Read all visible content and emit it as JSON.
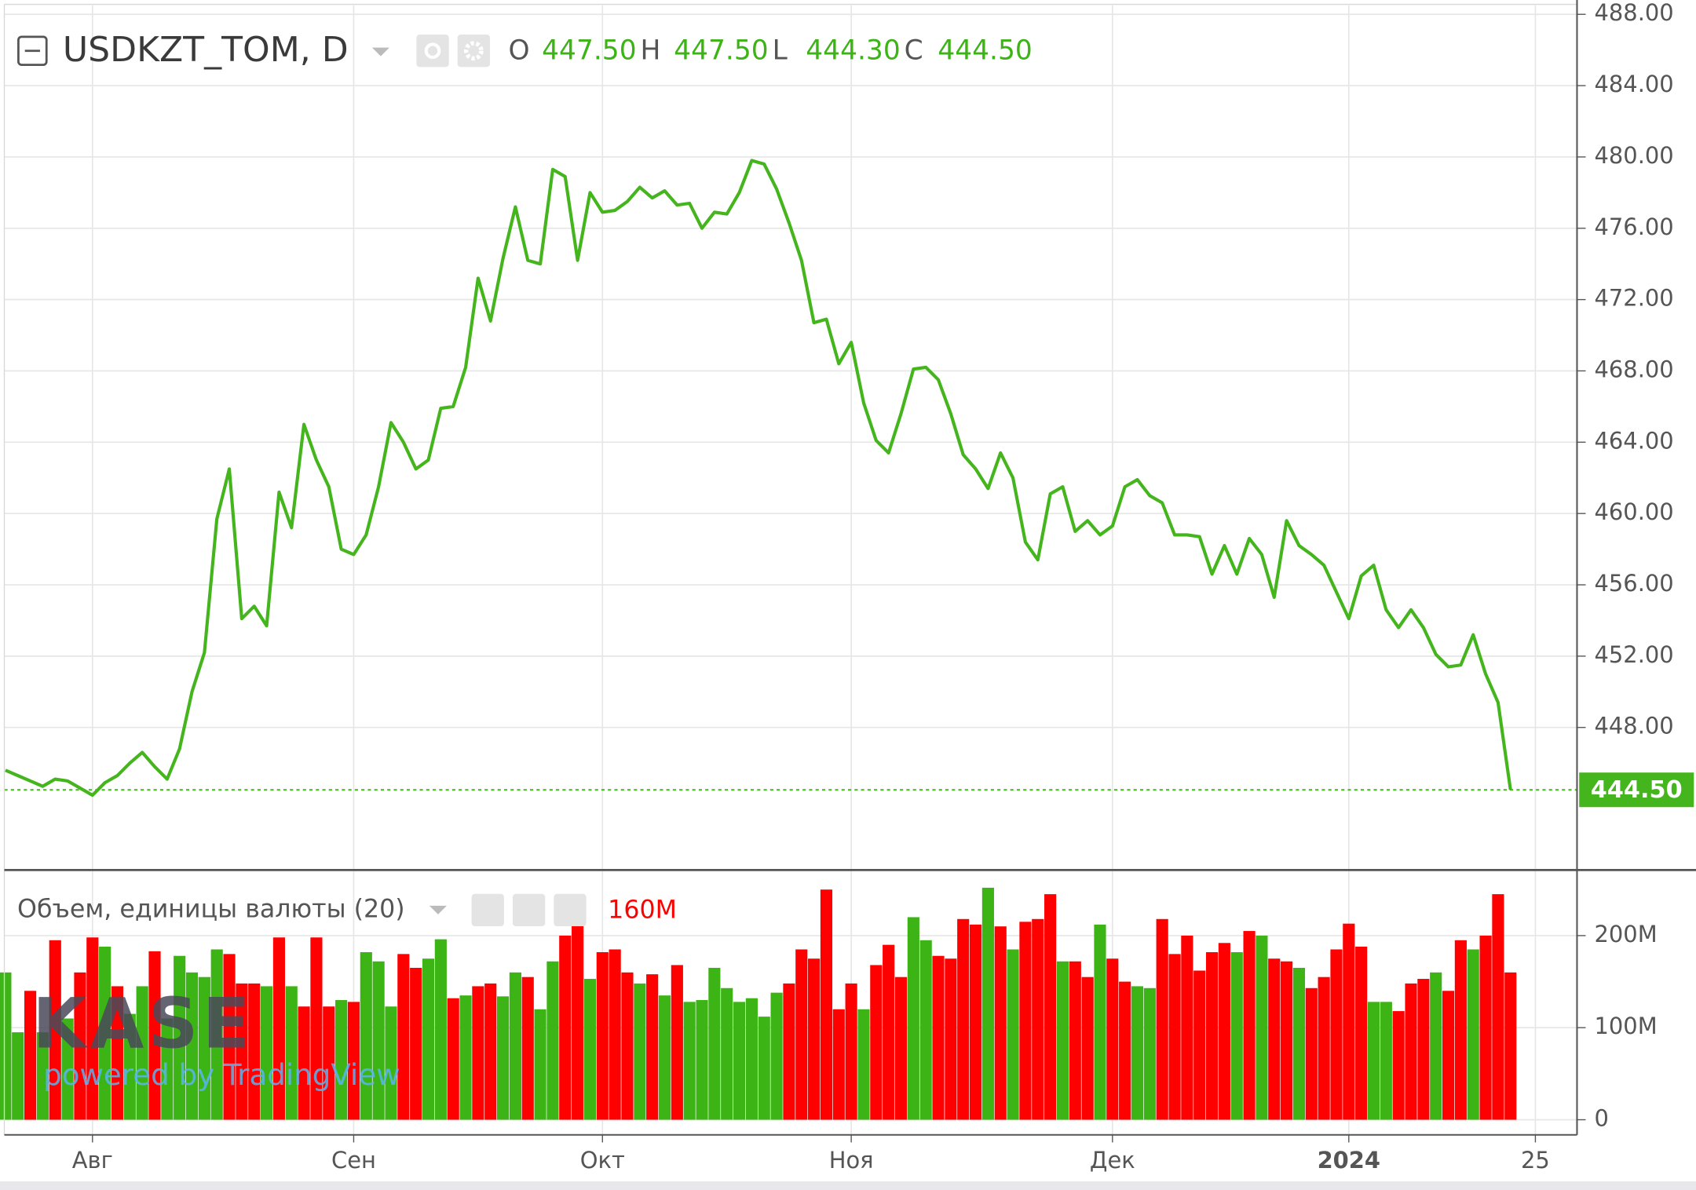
{
  "chart_data": [
    {
      "type": "line",
      "title": "USDKZT_TOM, D",
      "ohlc": [
        {
          "key": "O",
          "value": 447.5,
          "label": "447.50"
        },
        {
          "key": "H",
          "value": 447.5,
          "label": "447.50"
        },
        {
          "key": "L",
          "value": 444.3,
          "label": "444.30"
        },
        {
          "key": "C",
          "value": 444.5,
          "label": "444.50"
        }
      ],
      "categories": [
        null,
        null,
        null,
        null,
        null,
        null,
        null,
        "Авг",
        null,
        null,
        null,
        null,
        null,
        null,
        null,
        null,
        null,
        null,
        null,
        null,
        null,
        null,
        null,
        null,
        null,
        null,
        null,
        null,
        "Сен",
        null,
        null,
        null,
        null,
        null,
        null,
        null,
        null,
        null,
        null,
        null,
        null,
        null,
        null,
        null,
        null,
        null,
        null,
        null,
        "Окт",
        null,
        null,
        null,
        null,
        null,
        null,
        null,
        null,
        null,
        null,
        null,
        null,
        null,
        null,
        null,
        null,
        null,
        null,
        null,
        "Ноя",
        null,
        null,
        null,
        null,
        null,
        null,
        null,
        null,
        null,
        null,
        null,
        null,
        null,
        null,
        null,
        null,
        null,
        null,
        null,
        null,
        "Дек",
        null,
        null,
        null,
        null,
        null,
        null,
        null,
        null,
        null,
        null,
        null,
        null,
        null,
        null,
        null,
        null,
        null,
        null,
        "2024",
        null,
        null,
        null,
        null,
        null,
        null,
        null,
        null,
        null,
        null,
        null,
        null,
        null,
        null,
        "25"
      ],
      "values": [
        445.6,
        445.3,
        445.0,
        444.7,
        445.1,
        445.0,
        444.6,
        444.2,
        444.9,
        445.3,
        446.0,
        446.6,
        445.8,
        445.1,
        446.8,
        450.0,
        452.2,
        459.7,
        462.5,
        454.1,
        454.8,
        453.7,
        461.2,
        459.2,
        465.0,
        463.0,
        461.5,
        458.0,
        457.7,
        458.8,
        461.5,
        465.1,
        464.0,
        462.5,
        463.0,
        465.9,
        466.0,
        468.2,
        473.2,
        470.8,
        474.3,
        477.2,
        474.2,
        474.0,
        479.3,
        478.9,
        474.2,
        478.0,
        476.9,
        477.0,
        477.5,
        478.3,
        477.7,
        478.1,
        477.3,
        477.4,
        476.0,
        476.9,
        476.8,
        478.0,
        479.8,
        479.6,
        478.2,
        476.3,
        474.2,
        470.7,
        470.9,
        468.4,
        469.6,
        466.2,
        464.1,
        463.4,
        465.6,
        468.1,
        468.2,
        467.5,
        465.6,
        463.3,
        462.5,
        461.4,
        463.4,
        462.0,
        458.4,
        457.4,
        461.1,
        461.5,
        459.0,
        459.6,
        458.8,
        459.3,
        461.5,
        461.9,
        461.0,
        460.6,
        458.8,
        458.8,
        458.7,
        456.6,
        458.2,
        456.6,
        458.6,
        457.7,
        455.3,
        459.6,
        458.2,
        457.7,
        457.1,
        455.6,
        454.1,
        456.5,
        457.1,
        454.6,
        453.6,
        454.6,
        453.6,
        452.1,
        451.4,
        451.5,
        453.2,
        451.0,
        449.4,
        444.5,
        null,
        null
      ],
      "color": "#44b51d",
      "ylim": [
        440,
        488.5
      ],
      "yticks": [
        {
          "value": 448,
          "label": "448.00"
        },
        {
          "value": 452,
          "label": "452.00"
        },
        {
          "value": 456,
          "label": "456.00"
        },
        {
          "value": 460,
          "label": "460.00"
        },
        {
          "value": 464,
          "label": "464.00"
        },
        {
          "value": 468,
          "label": "468.00"
        },
        {
          "value": 472,
          "label": "472.00"
        },
        {
          "value": 476,
          "label": "476.00"
        },
        {
          "value": 480,
          "label": "480.00"
        },
        {
          "value": 484,
          "label": "484.00"
        },
        {
          "value": 488,
          "label": "488.00"
        }
      ],
      "grid": true,
      "last_value_line": true
    },
    {
      "type": "bar",
      "title": "Объем, единицы валюты (20)",
      "values": [
        160000000,
        95000000,
        140000000,
        95000000,
        195000000,
        110000000,
        160000000,
        198000000,
        188000000,
        145000000,
        115000000,
        145000000,
        183000000,
        110000000,
        178000000,
        160000000,
        155000000,
        185000000,
        180000000,
        148000000,
        148000000,
        145000000,
        198000000,
        145000000,
        123000000,
        198000000,
        123000000,
        130000000,
        128000000,
        182000000,
        172000000,
        123000000,
        180000000,
        165000000,
        175000000,
        196000000,
        132000000,
        135000000,
        145000000,
        148000000,
        134000000,
        160000000,
        155000000,
        120000000,
        172000000,
        200000000,
        220000000,
        153000000,
        182000000,
        185000000,
        160000000,
        148000000,
        158000000,
        135000000,
        168000000,
        128000000,
        130000000,
        165000000,
        143000000,
        128000000,
        132000000,
        112000000,
        138000000,
        148000000,
        185000000,
        175000000,
        250000000,
        120000000,
        148000000,
        120000000,
        168000000,
        190000000,
        155000000,
        220000000,
        195000000,
        178000000,
        175000000,
        218000000,
        212000000,
        252000000,
        210000000,
        185000000,
        215000000,
        218000000,
        245000000,
        172000000,
        172000000,
        155000000,
        212000000,
        175000000,
        150000000,
        145000000,
        143000000,
        218000000,
        180000000,
        200000000,
        162000000,
        182000000,
        192000000,
        182000000,
        205000000,
        200000000,
        175000000,
        172000000,
        165000000,
        143000000,
        155000000,
        185000000,
        213000000,
        188000000,
        128000000,
        128000000,
        118000000,
        148000000,
        153000000,
        160000000,
        140000000,
        195000000,
        185000000,
        200000000,
        245000000,
        160000000,
        null,
        null
      ],
      "value_labels": [
        null,
        null,
        null,
        null,
        null,
        null,
        null,
        null,
        null,
        null,
        null,
        null,
        null,
        null,
        null,
        null,
        null,
        null,
        null,
        null,
        null,
        null,
        null,
        null,
        null,
        null,
        null,
        null,
        null,
        null,
        null,
        null,
        null,
        null,
        null,
        null,
        null,
        null,
        null,
        null,
        null,
        null,
        null,
        null,
        null,
        null,
        null,
        null,
        null,
        null,
        null,
        null,
        null,
        null,
        null,
        null,
        null,
        null,
        null,
        null,
        null,
        null,
        null,
        null,
        null,
        null,
        null,
        null,
        null,
        null,
        null,
        null,
        null,
        null,
        null,
        null,
        null,
        null,
        null,
        null,
        null,
        null,
        null,
        null,
        null,
        null,
        null,
        null,
        null,
        null,
        null,
        null,
        null,
        null,
        null,
        null,
        null,
        null,
        null,
        null,
        null,
        null,
        null,
        null,
        null,
        null,
        null,
        null,
        null,
        null,
        null,
        null,
        null,
        null,
        null,
        null,
        null,
        null,
        null,
        null,
        null,
        "160M",
        null,
        null
      ],
      "colors": [
        "#3cb416",
        "#3cb416",
        "#ff0000",
        "#3cb416",
        "#ff0000",
        "#3cb416",
        "#ff0000",
        "#ff0000",
        "#3cb416",
        "#ff0000",
        "#3cb416",
        "#3cb416",
        "#ff0000",
        "#3cb416",
        "#3cb416",
        "#3cb416",
        "#3cb416",
        "#3cb416",
        "#ff0000",
        "#ff0000",
        "#ff0000",
        "#3cb416",
        "#ff0000",
        "#3cb416",
        "#ff0000",
        "#ff0000",
        "#ff0000",
        "#3cb416",
        "#ff0000",
        "#3cb416",
        "#3cb416",
        "#3cb416",
        "#ff0000",
        "#ff0000",
        "#3cb416",
        "#3cb416",
        "#ff0000",
        "#3cb416",
        "#ff0000",
        "#ff0000",
        "#3cb416",
        "#3cb416",
        "#ff0000",
        "#3cb416",
        "#3cb416",
        "#ff0000",
        "#ff0000",
        "#3cb416",
        "#ff0000",
        "#ff0000",
        "#ff0000",
        "#3cb416",
        "#ff0000",
        "#3cb416",
        "#ff0000",
        "#3cb416",
        "#3cb416",
        "#3cb416",
        "#3cb416",
        "#3cb416",
        "#3cb416",
        "#3cb416",
        "#3cb416",
        "#ff0000",
        "#ff0000",
        "#ff0000",
        "#ff0000",
        "#ff0000",
        "#ff0000",
        "#3cb416",
        "#ff0000",
        "#ff0000",
        "#ff0000",
        "#3cb416",
        "#3cb416",
        "#ff0000",
        "#ff0000",
        "#ff0000",
        "#ff0000",
        "#3cb416",
        "#ff0000",
        "#3cb416",
        "#ff0000",
        "#ff0000",
        "#ff0000",
        "#3cb416",
        "#ff0000",
        "#ff0000",
        "#3cb416",
        "#ff0000",
        "#ff0000",
        "#3cb416",
        "#3cb416",
        "#ff0000",
        "#ff0000",
        "#ff0000",
        "#ff0000",
        "#ff0000",
        "#ff0000",
        "#3cb416",
        "#ff0000",
        "#3cb416",
        "#ff0000",
        "#ff0000",
        "#3cb416",
        "#ff0000",
        "#ff0000",
        "#ff0000",
        "#ff0000",
        "#ff0000",
        "#3cb416",
        "#3cb416",
        "#ff0000",
        "#ff0000",
        "#ff0000",
        "#3cb416",
        "#ff0000",
        "#ff0000",
        "#3cb416",
        "#ff0000",
        "#ff0000",
        "#ff0000",
        null,
        null
      ],
      "ylim": [
        0,
        270000000
      ],
      "yticks": [
        0,
        {
          "value": 100000000,
          "label": "100M"
        },
        {
          "value": 200000000,
          "label": "200M"
        }
      ],
      "grid": true
    }
  ],
  "watermark": {
    "logo": "KASE",
    "text": "powered by TradingView"
  }
}
